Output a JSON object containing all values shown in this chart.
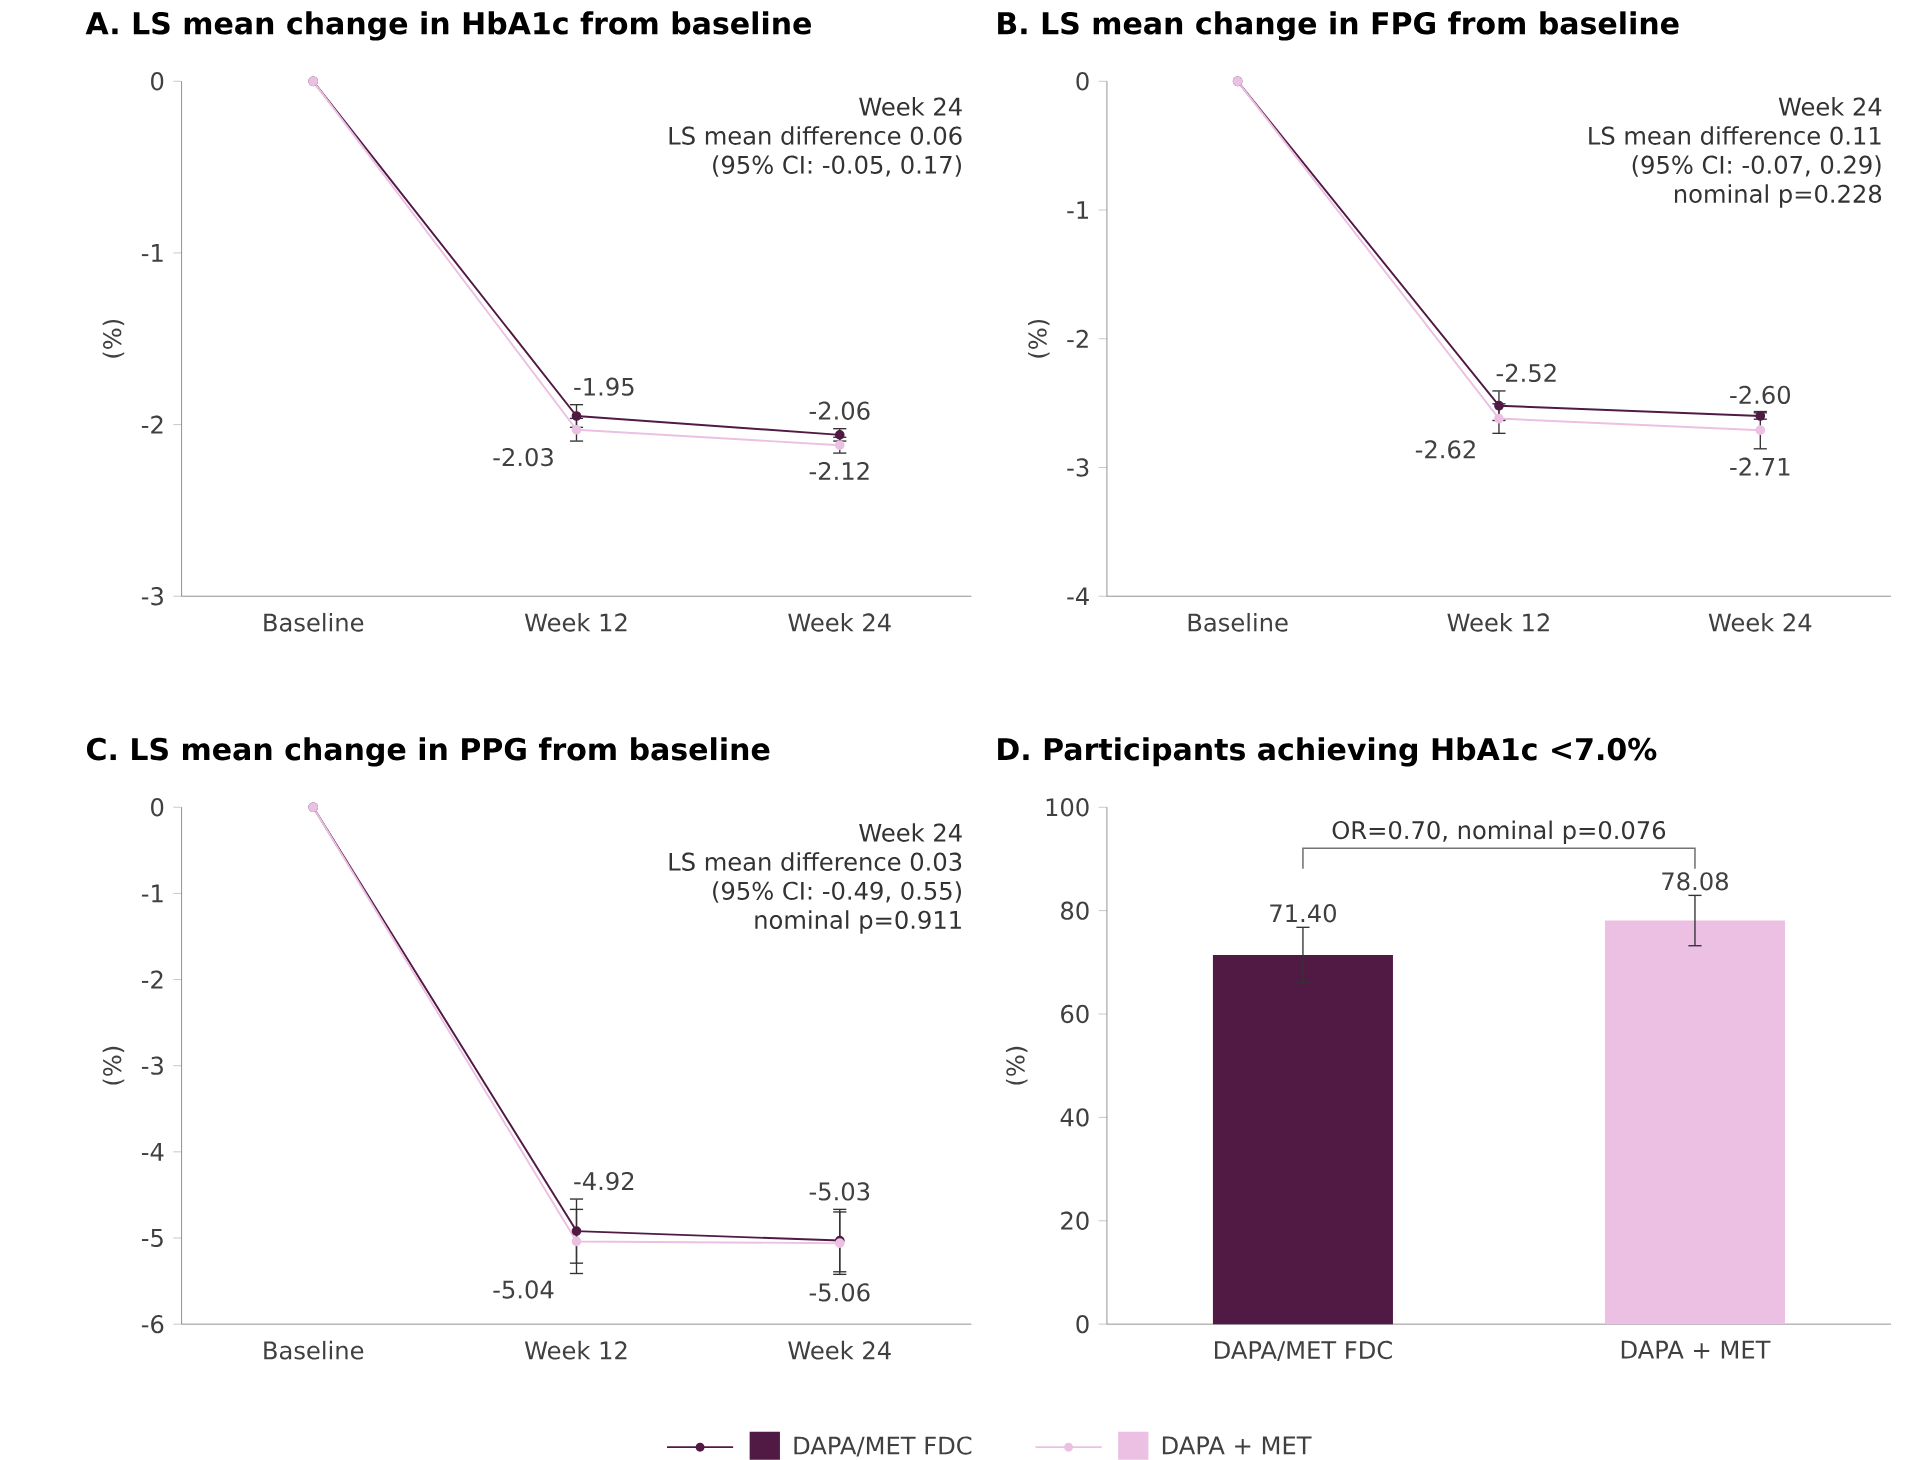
{
  "chart_data": [
    {
      "type": "line",
      "title": "A. LS mean change in HbA1c from baseline",
      "ylabel": "(%)",
      "categories": [
        "Baseline",
        "Week 12",
        "Week 24"
      ],
      "ylim": [
        -3,
        0
      ],
      "yticks": [
        -3,
        -2,
        -1,
        0
      ],
      "marker": "circle",
      "annotations": [
        "Week 24",
        "LS mean difference 0.06",
        "(95% CI: -0.05, 0.17)"
      ],
      "series": [
        {
          "color": "#501a45",
          "values": [
            0,
            -1.95,
            -2.06
          ],
          "errors": [
            null,
            0.07,
            0.04
          ],
          "value_labels": [
            null,
            "-1.95",
            "-2.06"
          ]
        },
        {
          "color": "#ecc0e2",
          "values": [
            0,
            -2.03,
            -2.12
          ],
          "errors": [
            null,
            0.07,
            0.05
          ],
          "value_labels": [
            null,
            "-2.03",
            "-2.12"
          ]
        }
      ]
    },
    {
      "type": "line",
      "title": "B. LS mean change in FPG from baseline",
      "ylabel": "(%)",
      "categories": [
        "Baseline",
        "Week 12",
        "Week 24"
      ],
      "ylim": [
        -4,
        0
      ],
      "yticks": [
        -4,
        -3,
        -2,
        -1,
        0
      ],
      "marker": "circle",
      "annotations": [
        "Week 24",
        "LS mean difference 0.11",
        "(95% CI: -0.07, 0.29)",
        "nominal p=0.228"
      ],
      "series": [
        {
          "color": "#501a45",
          "values": [
            0,
            -2.52,
            -2.6
          ],
          "errors": [
            null,
            0.12,
            0.03
          ],
          "value_labels": [
            null,
            "-2.52",
            "-2.60"
          ]
        },
        {
          "color": "#ecc0e2",
          "values": [
            0,
            -2.62,
            -2.71
          ],
          "errors": [
            null,
            0.12,
            0.15
          ],
          "value_labels": [
            null,
            "-2.62",
            "-2.71"
          ]
        }
      ]
    },
    {
      "type": "line",
      "title": "C. LS mean change in PPG from baseline",
      "ylabel": "(%)",
      "categories": [
        "Baseline",
        "Week 12",
        "Week 24"
      ],
      "ylim": [
        -6,
        0
      ],
      "yticks": [
        -6,
        -5,
        -4,
        -3,
        -2,
        -1,
        0
      ],
      "marker": "circle",
      "annotations": [
        "Week 24",
        "LS mean difference 0.03",
        "(95% CI: -0.49, 0.55)",
        "nominal p=0.911"
      ],
      "series": [
        {
          "color": "#501a45",
          "values": [
            0,
            -4.92,
            -5.03
          ],
          "errors": [
            null,
            0.38,
            0.37
          ],
          "value_labels": [
            null,
            "-4.92",
            "-5.03"
          ]
        },
        {
          "color": "#ecc0e2",
          "values": [
            0,
            -5.04,
            -5.06
          ],
          "errors": [
            null,
            0.38,
            0.37
          ],
          "value_labels": [
            null,
            "-5.04",
            "-5.06"
          ]
        }
      ]
    },
    {
      "type": "bar",
      "title": "D. Participants achieving HbA1c <7.0%",
      "ylabel": "(%)",
      "categories": [
        "DAPA/MET FDC",
        "DAPA + MET"
      ],
      "ylim": [
        0,
        100
      ],
      "yticks": [
        0,
        20,
        40,
        60,
        80,
        100
      ],
      "legend": "bottom",
      "annotations": [
        "OR=0.70, nominal p=0.076"
      ],
      "series": [
        {
          "name": "DAPA/MET FDC",
          "color": "#501a45",
          "values": [
            71.4,
            null
          ],
          "errors": [
            5.5,
            null
          ],
          "value_labels": [
            "71.40",
            null
          ]
        },
        {
          "name": "DAPA + MET",
          "color": "#ecc0e2",
          "values": [
            null,
            78.08
          ],
          "errors": [
            null,
            5.0
          ],
          "value_labels": [
            null,
            "78.08"
          ]
        }
      ]
    }
  ]
}
